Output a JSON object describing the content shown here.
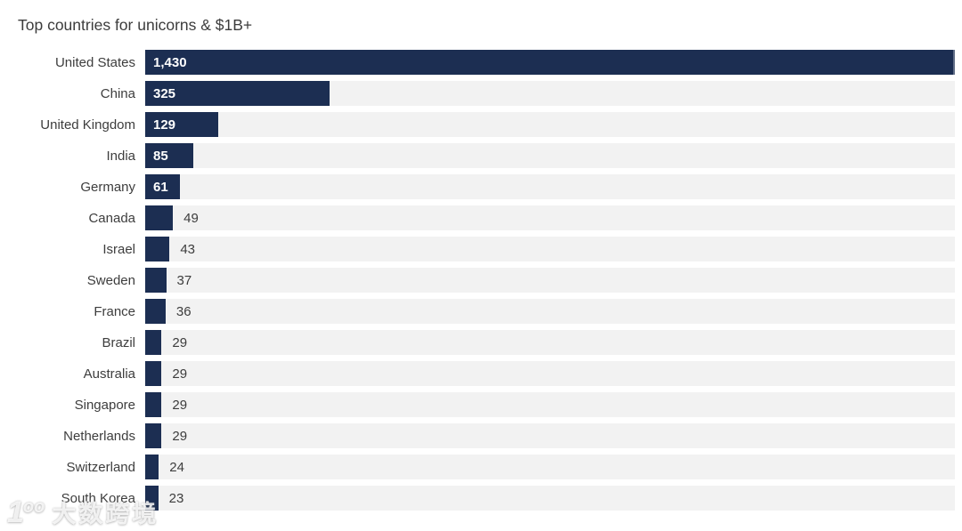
{
  "title": "Top countries for unicorns & $1B+",
  "chart_data": {
    "type": "bar",
    "orientation": "horizontal",
    "title": "Top countries for unicorns & $1B+",
    "categories": [
      "United States",
      "China",
      "United Kingdom",
      "India",
      "Germany",
      "Canada",
      "Israel",
      "Sweden",
      "France",
      "Brazil",
      "Australia",
      "Singapore",
      "Netherlands",
      "Switzerland",
      "South Korea"
    ],
    "values": [
      1430,
      325,
      129,
      85,
      61,
      49,
      43,
      37,
      36,
      29,
      29,
      29,
      29,
      24,
      23
    ],
    "value_labels": [
      "1,430",
      "325",
      "129",
      "85",
      "61",
      "49",
      "43",
      "37",
      "36",
      "29",
      "29",
      "29",
      "29",
      "24",
      "23"
    ],
    "xlim": [
      0,
      1430
    ],
    "grid": false,
    "legend": false,
    "value_label_placement": "inside-for-large-bars, outside-for-small-bars",
    "colors": {
      "bar": "#1c2e52",
      "track": "#f2f2f2",
      "title_text": "#3c3c3c",
      "label_text": "#3d3d3d",
      "value_inside": "#ffffff",
      "value_outside": "#3d3d3d",
      "background": "#ffffff"
    }
  },
  "watermark": {
    "logo_one": "1",
    "logo_oo": "oo",
    "text": "大数跨境"
  }
}
